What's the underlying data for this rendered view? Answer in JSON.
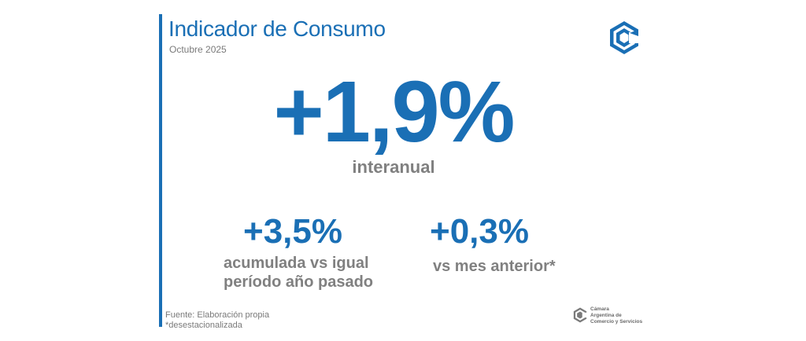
{
  "header": {
    "title": "Indicador de Consumo",
    "subtitle": "Octubre 2025"
  },
  "hero": {
    "value": "+1,9%",
    "label": "interanual"
  },
  "kpis": [
    {
      "value": "+3,5%",
      "label_line1": "acumulada vs igual",
      "label_line2": "período año pasado"
    },
    {
      "value": "+0,3%",
      "label": "vs mes anterior*"
    }
  ],
  "footer": {
    "source": "Fuente: Elaboración propia",
    "note": "*desestacionalizada"
  },
  "organization": {
    "line1": "Cámara",
    "line2": "Argentina de",
    "line3": "Comercio y Servicios"
  },
  "colors": {
    "accent": "#1a6fb5",
    "muted_text": "#808080"
  },
  "icons": {
    "top_logo": "cac-logo-icon",
    "bottom_logo": "cac-logo-icon"
  }
}
